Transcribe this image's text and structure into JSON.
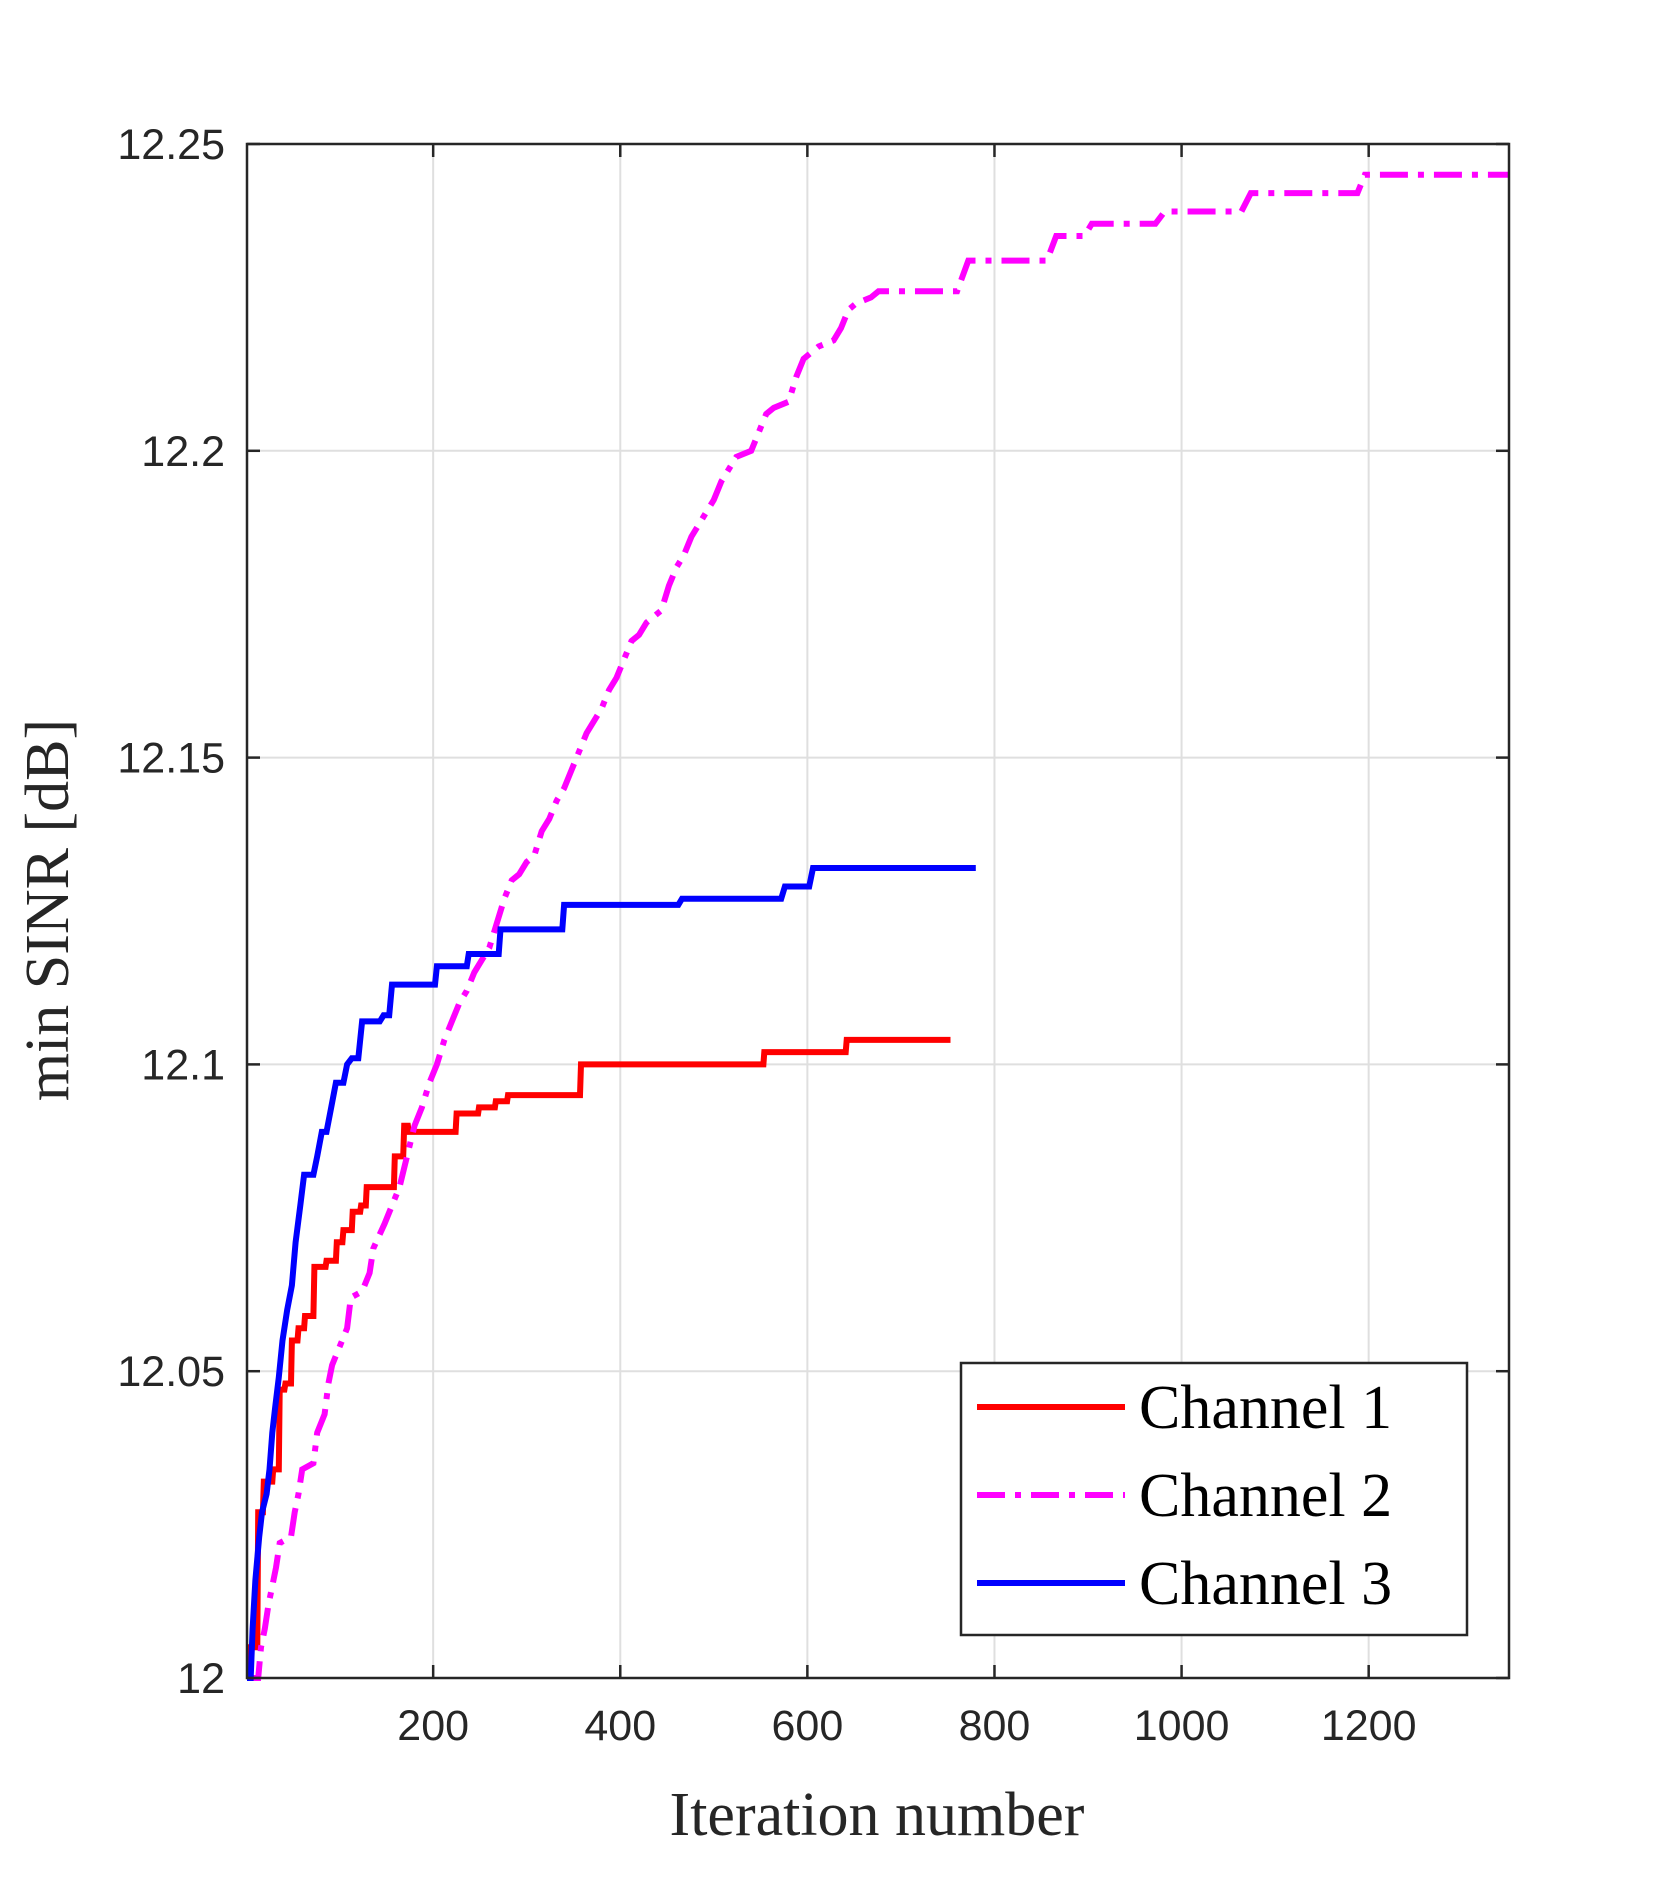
{
  "chart_data": {
    "type": "line",
    "title": "",
    "xlabel": "Iteration number",
    "ylabel": "min SINR [dB]",
    "xlim": [
      1,
      1350
    ],
    "ylim": [
      12,
      12.25
    ],
    "xticks": [
      200,
      400,
      600,
      800,
      1000,
      1200
    ],
    "xtick_labels": [
      "200",
      "400",
      "600",
      "800",
      "1000",
      "1200"
    ],
    "yticks": [
      12,
      12.05,
      12.1,
      12.15,
      12.2,
      12.25
    ],
    "ytick_labels": [
      "12",
      "12.05",
      "12.1",
      "12.15",
      "12.2",
      "12.25"
    ],
    "grid": true,
    "legend_position": "bottom-right",
    "series": [
      {
        "name": "Channel 1",
        "color": "#ff0000",
        "style": "solid",
        "points": [
          [
            1,
            12.0
          ],
          [
            4,
            12.0
          ],
          [
            5,
            12.005
          ],
          [
            12,
            12.005
          ],
          [
            13,
            12.027
          ],
          [
            18,
            12.027
          ],
          [
            19,
            12.032
          ],
          [
            28,
            12.032
          ],
          [
            29,
            12.034
          ],
          [
            35,
            12.034
          ],
          [
            36,
            12.047
          ],
          [
            41,
            12.047
          ],
          [
            42,
            12.048
          ],
          [
            48,
            12.048
          ],
          [
            49,
            12.055
          ],
          [
            55,
            12.055
          ],
          [
            56,
            12.057
          ],
          [
            62,
            12.057
          ],
          [
            63,
            12.059
          ],
          [
            72,
            12.059
          ],
          [
            73,
            12.067
          ],
          [
            85,
            12.067
          ],
          [
            86,
            12.068
          ],
          [
            96,
            12.068
          ],
          [
            97,
            12.071
          ],
          [
            103,
            12.071
          ],
          [
            104,
            12.073
          ],
          [
            113,
            12.073
          ],
          [
            114,
            12.076
          ],
          [
            122,
            12.076
          ],
          [
            123,
            12.077
          ],
          [
            128,
            12.077
          ],
          [
            129,
            12.08
          ],
          [
            158,
            12.08
          ],
          [
            159,
            12.085
          ],
          [
            168,
            12.085
          ],
          [
            169,
            12.09
          ],
          [
            173,
            12.09
          ],
          [
            174,
            12.089
          ],
          [
            224,
            12.089
          ],
          [
            225,
            12.092
          ],
          [
            248,
            12.092
          ],
          [
            249,
            12.093
          ],
          [
            266,
            12.093
          ],
          [
            267,
            12.094
          ],
          [
            279,
            12.094
          ],
          [
            280,
            12.095
          ],
          [
            357,
            12.095
          ],
          [
            358,
            12.1
          ],
          [
            553,
            12.1
          ],
          [
            554,
            12.102
          ],
          [
            641,
            12.102
          ],
          [
            642,
            12.104
          ],
          [
            753,
            12.104
          ]
        ]
      },
      {
        "name": "Channel 2",
        "color": "#ff00ff",
        "style": "dashdot",
        "points": [
          [
            1,
            12.0
          ],
          [
            13,
            12.0
          ],
          [
            16,
            12.005
          ],
          [
            20,
            12.008
          ],
          [
            24,
            12.012
          ],
          [
            28,
            12.015
          ],
          [
            32,
            12.018
          ],
          [
            36,
            12.022
          ],
          [
            48,
            12.023
          ],
          [
            52,
            12.027
          ],
          [
            56,
            12.03
          ],
          [
            60,
            12.034
          ],
          [
            72,
            12.035
          ],
          [
            76,
            12.04
          ],
          [
            84,
            12.043
          ],
          [
            88,
            12.048
          ],
          [
            92,
            12.051
          ],
          [
            100,
            12.054
          ],
          [
            108,
            12.057
          ],
          [
            112,
            12.062
          ],
          [
            124,
            12.063
          ],
          [
            132,
            12.066
          ],
          [
            136,
            12.07
          ],
          [
            148,
            12.074
          ],
          [
            156,
            12.077
          ],
          [
            164,
            12.08
          ],
          [
            172,
            12.085
          ],
          [
            180,
            12.09
          ],
          [
            188,
            12.093
          ],
          [
            196,
            12.097
          ],
          [
            204,
            12.1
          ],
          [
            212,
            12.104
          ],
          [
            220,
            12.107
          ],
          [
            228,
            12.11
          ],
          [
            236,
            12.112
          ],
          [
            244,
            12.115
          ],
          [
            252,
            12.117
          ],
          [
            260,
            12.119
          ],
          [
            268,
            12.123
          ],
          [
            276,
            12.127
          ],
          [
            284,
            12.13
          ],
          [
            292,
            12.131
          ],
          [
            300,
            12.133
          ],
          [
            308,
            12.134
          ],
          [
            316,
            12.138
          ],
          [
            324,
            12.14
          ],
          [
            332,
            12.143
          ],
          [
            340,
            12.145
          ],
          [
            348,
            12.148
          ],
          [
            356,
            12.151
          ],
          [
            364,
            12.154
          ],
          [
            372,
            12.156
          ],
          [
            380,
            12.158
          ],
          [
            388,
            12.161
          ],
          [
            396,
            12.163
          ],
          [
            404,
            12.166
          ],
          [
            412,
            12.169
          ],
          [
            420,
            12.17
          ],
          [
            428,
            12.172
          ],
          [
            436,
            12.173
          ],
          [
            444,
            12.174
          ],
          [
            452,
            12.178
          ],
          [
            460,
            12.181
          ],
          [
            468,
            12.183
          ],
          [
            476,
            12.186
          ],
          [
            484,
            12.188
          ],
          [
            492,
            12.19
          ],
          [
            500,
            12.192
          ],
          [
            508,
            12.195
          ],
          [
            516,
            12.197
          ],
          [
            524,
            12.199
          ],
          [
            540,
            12.2
          ],
          [
            548,
            12.203
          ],
          [
            556,
            12.206
          ],
          [
            564,
            12.207
          ],
          [
            580,
            12.208
          ],
          [
            588,
            12.212
          ],
          [
            596,
            12.215
          ],
          [
            604,
            12.216
          ],
          [
            612,
            12.217
          ],
          [
            628,
            12.218
          ],
          [
            636,
            12.22
          ],
          [
            644,
            12.223
          ],
          [
            652,
            12.224
          ],
          [
            668,
            12.225
          ],
          [
            676,
            12.226
          ],
          [
            760,
            12.226
          ],
          [
            772,
            12.231
          ],
          [
            856,
            12.231
          ],
          [
            866,
            12.235
          ],
          [
            896,
            12.235
          ],
          [
            904,
            12.237
          ],
          [
            972,
            12.237
          ],
          [
            982,
            12.239
          ],
          [
            1064,
            12.239
          ],
          [
            1074,
            12.242
          ],
          [
            1188,
            12.242
          ],
          [
            1196,
            12.245
          ],
          [
            1350,
            12.245
          ]
        ]
      },
      {
        "name": "Channel 3",
        "color": "#0000ff",
        "style": "solid",
        "points": [
          [
            1,
            12.0
          ],
          [
            5,
            12.0
          ],
          [
            7,
            12.008
          ],
          [
            10,
            12.016
          ],
          [
            14,
            12.023
          ],
          [
            17,
            12.027
          ],
          [
            22,
            12.03
          ],
          [
            25,
            12.034
          ],
          [
            28,
            12.04
          ],
          [
            31,
            12.044
          ],
          [
            35,
            12.049
          ],
          [
            39,
            12.055
          ],
          [
            44,
            12.06
          ],
          [
            49,
            12.064
          ],
          [
            53,
            12.071
          ],
          [
            58,
            12.077
          ],
          [
            62,
            12.082
          ],
          [
            72,
            12.082
          ],
          [
            76,
            12.085
          ],
          [
            81,
            12.089
          ],
          [
            86,
            12.089
          ],
          [
            91,
            12.093
          ],
          [
            96,
            12.097
          ],
          [
            104,
            12.097
          ],
          [
            108,
            12.1
          ],
          [
            113,
            12.101
          ],
          [
            120,
            12.101
          ],
          [
            124,
            12.107
          ],
          [
            143,
            12.107
          ],
          [
            147,
            12.108
          ],
          [
            153,
            12.108
          ],
          [
            156,
            12.113
          ],
          [
            202,
            12.113
          ],
          [
            204,
            12.116
          ],
          [
            236,
            12.116
          ],
          [
            238,
            12.118
          ],
          [
            270,
            12.118
          ],
          [
            272,
            12.122
          ],
          [
            312,
            12.122
          ],
          [
            314,
            12.122
          ],
          [
            338,
            12.122
          ],
          [
            340,
            12.126
          ],
          [
            462,
            12.126
          ],
          [
            466,
            12.127
          ],
          [
            572,
            12.127
          ],
          [
            576,
            12.129
          ],
          [
            602,
            12.129
          ],
          [
            606,
            12.132
          ],
          [
            780,
            12.132
          ]
        ]
      }
    ]
  }
}
